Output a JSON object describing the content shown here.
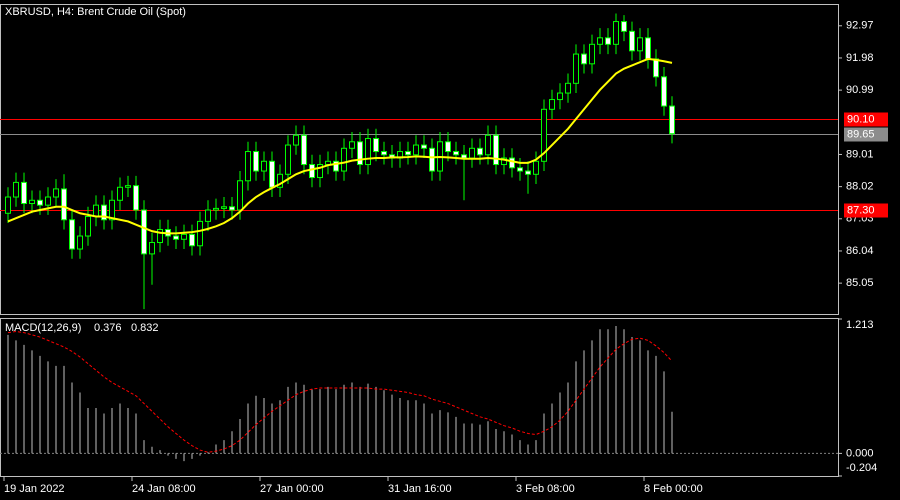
{
  "chart_data": [
    {
      "type": "candlestick",
      "title": "XBRUSD, H4:  Brent Crude Oil (Spot)",
      "categories": [
        "19 Jan 2022",
        null,
        null,
        null,
        null,
        null,
        null,
        null,
        null,
        null,
        null,
        null,
        null,
        null,
        null,
        null,
        "24 Jan 08:00",
        null,
        null,
        null,
        null,
        null,
        null,
        null,
        null,
        null,
        null,
        null,
        null,
        null,
        null,
        null,
        "27 Jan 00:00",
        null,
        null,
        null,
        null,
        null,
        null,
        null,
        null,
        null,
        null,
        null,
        null,
        null,
        null,
        null,
        "31 Jan 16:00",
        null,
        null,
        null,
        null,
        null,
        null,
        null,
        null,
        null,
        null,
        null,
        null,
        null,
        null,
        null,
        "3 Feb 08:00",
        null,
        null,
        null,
        null,
        null,
        null,
        null,
        null,
        null,
        null,
        null,
        null,
        null,
        null,
        null,
        "8 Feb 00:00",
        null,
        null,
        null
      ],
      "open": [
        87.2,
        87.7,
        88.15,
        87.5,
        87.6,
        87.45,
        87.7,
        87.95,
        87.0,
        86.1,
        86.5,
        87.1,
        87.45,
        87.0,
        87.6,
        88.0,
        88.05,
        87.3,
        85.95,
        86.3,
        86.7,
        86.5,
        86.4,
        86.55,
        86.2,
        86.95,
        87.3,
        87.35,
        87.4,
        87.3,
        88.2,
        89.1,
        88.5,
        88.8,
        88.0,
        88.4,
        89.3,
        89.6,
        88.7,
        88.3,
        88.7,
        88.8,
        88.5,
        89.2,
        89.4,
        88.7,
        89.5,
        89.1,
        89.0,
        88.9,
        89.1,
        89.0,
        89.3,
        89.2,
        88.5,
        89.4,
        89.1,
        89.0,
        88.9,
        89.2,
        89.0,
        89.6,
        88.7,
        88.9,
        88.6,
        88.5,
        88.4,
        88.8,
        90.4,
        90.7,
        90.9,
        91.2,
        92.1,
        91.8,
        92.4,
        92.6,
        92.4,
        93.1,
        92.8,
        92.2,
        92.6,
        91.95,
        91.4,
        90.5
      ],
      "high": [
        88.0,
        88.45,
        88.45,
        87.9,
        87.9,
        88.0,
        88.25,
        88.4,
        87.3,
        86.8,
        87.4,
        87.75,
        87.75,
        87.9,
        88.3,
        88.35,
        88.35,
        87.6,
        86.6,
        87.0,
        87.0,
        86.8,
        86.85,
        86.85,
        87.25,
        87.6,
        87.65,
        87.7,
        87.7,
        88.5,
        89.4,
        89.4,
        89.1,
        89.1,
        88.7,
        89.6,
        89.9,
        89.9,
        89.0,
        89.0,
        89.1,
        89.1,
        89.5,
        89.7,
        89.7,
        89.8,
        89.8,
        89.4,
        89.3,
        89.4,
        89.4,
        89.6,
        89.6,
        89.5,
        89.7,
        89.7,
        89.4,
        89.3,
        89.5,
        89.5,
        89.9,
        89.9,
        89.2,
        89.2,
        88.9,
        88.8,
        89.1,
        90.7,
        91.0,
        91.2,
        91.5,
        92.4,
        92.4,
        92.7,
        92.9,
        92.9,
        93.35,
        93.3,
        93.1,
        92.9,
        92.9,
        92.25,
        91.7,
        90.8
      ],
      "low": [
        86.9,
        87.4,
        87.2,
        87.2,
        87.15,
        87.15,
        87.4,
        86.7,
        85.8,
        85.8,
        86.2,
        86.8,
        86.7,
        86.7,
        87.3,
        87.7,
        87.0,
        84.25,
        85.0,
        86.0,
        86.2,
        86.1,
        86.1,
        85.9,
        85.9,
        86.65,
        87.0,
        87.05,
        87.0,
        87.0,
        87.9,
        88.2,
        88.2,
        87.7,
        87.7,
        88.1,
        89.0,
        88.4,
        88.0,
        88.0,
        88.4,
        88.2,
        88.2,
        88.9,
        88.4,
        88.4,
        88.8,
        88.7,
        88.6,
        88.6,
        88.7,
        88.7,
        88.9,
        88.2,
        88.2,
        88.8,
        88.7,
        87.6,
        88.6,
        88.7,
        88.7,
        88.4,
        88.4,
        88.3,
        88.2,
        87.8,
        88.1,
        88.5,
        90.1,
        90.4,
        90.6,
        90.9,
        91.5,
        91.5,
        92.1,
        92.1,
        92.1,
        92.5,
        91.9,
        91.9,
        91.65,
        91.1,
        90.2,
        89.35
      ],
      "close": [
        87.7,
        88.15,
        87.5,
        87.6,
        87.45,
        87.7,
        87.95,
        87.0,
        86.1,
        86.5,
        87.1,
        87.45,
        87.0,
        87.6,
        88.0,
        88.05,
        87.3,
        85.95,
        86.3,
        86.7,
        86.5,
        86.4,
        86.55,
        86.2,
        86.95,
        87.3,
        87.35,
        87.4,
        87.3,
        88.2,
        89.1,
        88.5,
        88.8,
        88.0,
        88.4,
        89.3,
        89.6,
        88.7,
        88.3,
        88.7,
        88.8,
        88.5,
        89.2,
        89.4,
        88.7,
        89.5,
        89.1,
        89.0,
        88.9,
        89.1,
        89.0,
        89.3,
        89.2,
        88.5,
        89.4,
        89.1,
        89.0,
        88.9,
        89.2,
        89.0,
        89.6,
        88.7,
        88.9,
        88.6,
        88.5,
        88.4,
        88.8,
        90.4,
        90.7,
        90.9,
        91.2,
        92.1,
        91.8,
        92.4,
        92.6,
        92.4,
        93.1,
        92.8,
        92.2,
        92.6,
        91.95,
        91.4,
        90.5,
        89.65
      ],
      "up_color": "#00ff00",
      "down_color": "#ffffff",
      "moving_average": {
        "color": "#ffff00",
        "values": [
          86.95,
          87.05,
          87.15,
          87.25,
          87.3,
          87.35,
          87.4,
          87.4,
          87.3,
          87.2,
          87.15,
          87.1,
          87.1,
          87.05,
          87.0,
          86.95,
          86.85,
          86.75,
          86.65,
          86.6,
          86.58,
          86.58,
          86.6,
          86.62,
          86.66,
          86.72,
          86.8,
          86.9,
          87.05,
          87.25,
          87.5,
          87.7,
          87.85,
          87.98,
          88.1,
          88.25,
          88.4,
          88.5,
          88.55,
          88.6,
          88.68,
          88.72,
          88.76,
          88.82,
          88.85,
          88.88,
          88.9,
          88.9,
          88.92,
          88.92,
          88.93,
          88.95,
          88.94,
          88.92,
          88.93,
          88.92,
          88.9,
          88.88,
          88.88,
          88.88,
          88.9,
          88.88,
          88.85,
          88.8,
          88.75,
          88.75,
          88.85,
          89.05,
          89.3,
          89.55,
          89.8,
          90.1,
          90.4,
          90.7,
          91.0,
          91.25,
          91.5,
          91.65,
          91.75,
          91.85,
          91.95,
          91.92,
          91.88,
          91.83
        ]
      },
      "levels": [
        {
          "value": 90.1,
          "label": "90.10",
          "color": "#ff0000"
        },
        {
          "value": 87.3,
          "label": "87.30",
          "color": "#ff0000"
        },
        {
          "value": 89.65,
          "label": "89.65",
          "color": "#8c8c8c"
        }
      ],
      "ylim": [
        84.1,
        93.61
      ],
      "yticks": [
        92.97,
        91.98,
        90.99,
        89.01,
        88.02,
        87.03,
        86.04,
        85.05
      ]
    },
    {
      "type": "macd",
      "label": "MACD(12,26,9)",
      "histogram": {
        "color": "#c0c0c0",
        "values": [
          1.07,
          1.02,
          0.98,
          0.93,
          0.88,
          0.83,
          0.79,
          0.79,
          0.64,
          0.55,
          0.41,
          0.41,
          0.36,
          0.41,
          0.45,
          0.41,
          0.36,
          0.12,
          0.06,
          0.03,
          -0.02,
          -0.05,
          -0.07,
          -0.05,
          -0.02,
          0.01,
          0.08,
          0.12,
          0.2,
          0.31,
          0.45,
          0.52,
          0.5,
          0.45,
          0.48,
          0.6,
          0.64,
          0.62,
          0.58,
          0.58,
          0.6,
          0.58,
          0.62,
          0.64,
          0.6,
          0.63,
          0.6,
          0.57,
          0.53,
          0.5,
          0.48,
          0.48,
          0.45,
          0.36,
          0.39,
          0.37,
          0.33,
          0.27,
          0.27,
          0.26,
          0.29,
          0.22,
          0.2,
          0.17,
          0.12,
          0.08,
          0.12,
          0.36,
          0.45,
          0.55,
          0.64,
          0.83,
          0.93,
          1.02,
          1.12,
          1.12,
          1.15,
          1.12,
          1.05,
          1.02,
          0.93,
          0.88,
          0.74,
          0.376
        ]
      },
      "signal": {
        "color": "#ff0000",
        "values": [
          1.09,
          1.1,
          1.09,
          1.07,
          1.05,
          1.02,
          0.99,
          0.96,
          0.92,
          0.87,
          0.81,
          0.75,
          0.69,
          0.64,
          0.6,
          0.56,
          0.52,
          0.45,
          0.38,
          0.31,
          0.24,
          0.18,
          0.12,
          0.07,
          0.03,
          0.01,
          0.02,
          0.04,
          0.07,
          0.12,
          0.19,
          0.26,
          0.32,
          0.38,
          0.43,
          0.48,
          0.53,
          0.56,
          0.58,
          0.59,
          0.59,
          0.59,
          0.59,
          0.59,
          0.59,
          0.59,
          0.58,
          0.58,
          0.57,
          0.56,
          0.55,
          0.53,
          0.52,
          0.49,
          0.47,
          0.45,
          0.42,
          0.39,
          0.36,
          0.33,
          0.31,
          0.28,
          0.25,
          0.23,
          0.2,
          0.18,
          0.17,
          0.2,
          0.24,
          0.3,
          0.38,
          0.48,
          0.58,
          0.68,
          0.78,
          0.86,
          0.94,
          0.99,
          1.03,
          1.04,
          1.02,
          0.97,
          0.91,
          0.832
        ]
      },
      "ylim": [
        -0.204,
        1.213
      ],
      "yticks": [
        1.213,
        {
          "value": 0,
          "label": "0.000"
        },
        -0.204
      ]
    }
  ]
}
